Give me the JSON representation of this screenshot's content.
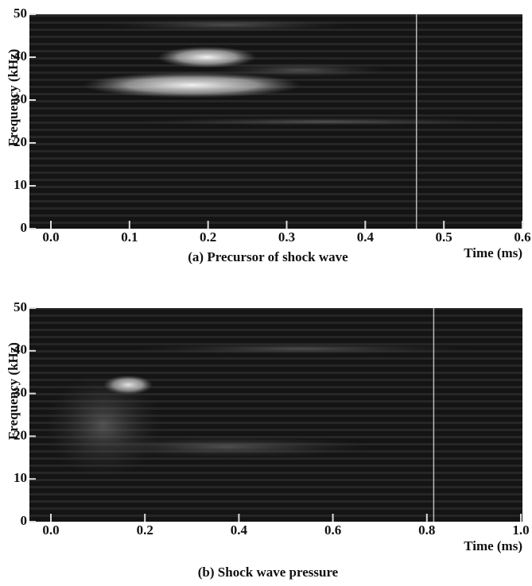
{
  "chart_data": [
    {
      "type": "spectrogram",
      "caption": "(a) Precursor of shock wave",
      "xlabel": "Time (ms)",
      "ylabel": "Frequency (kHz)",
      "xlim": [
        0,
        0.6
      ],
      "xticks": [
        {
          "value": 0,
          "label": "0.0"
        },
        0.1,
        0.2,
        0.3,
        0.4,
        0.5,
        0.6
      ],
      "ylim": [
        0,
        50
      ],
      "yticks": [
        0,
        10,
        20,
        30,
        40,
        50
      ]
    },
    {
      "type": "spectrogram",
      "caption": "(b) Shock wave pressure",
      "xlabel": "Time (ms)",
      "ylabel": "Frequency (kHz)",
      "xlim": [
        0,
        1
      ],
      "xticks": [
        {
          "value": 0,
          "label": "0.0"
        },
        0.2,
        0.4,
        0.6,
        0.8,
        {
          "value": 1,
          "label": "1.0"
        }
      ],
      "ylim": [
        0,
        50
      ],
      "yticks": [
        0,
        10,
        20,
        30,
        40,
        50
      ]
    }
  ]
}
